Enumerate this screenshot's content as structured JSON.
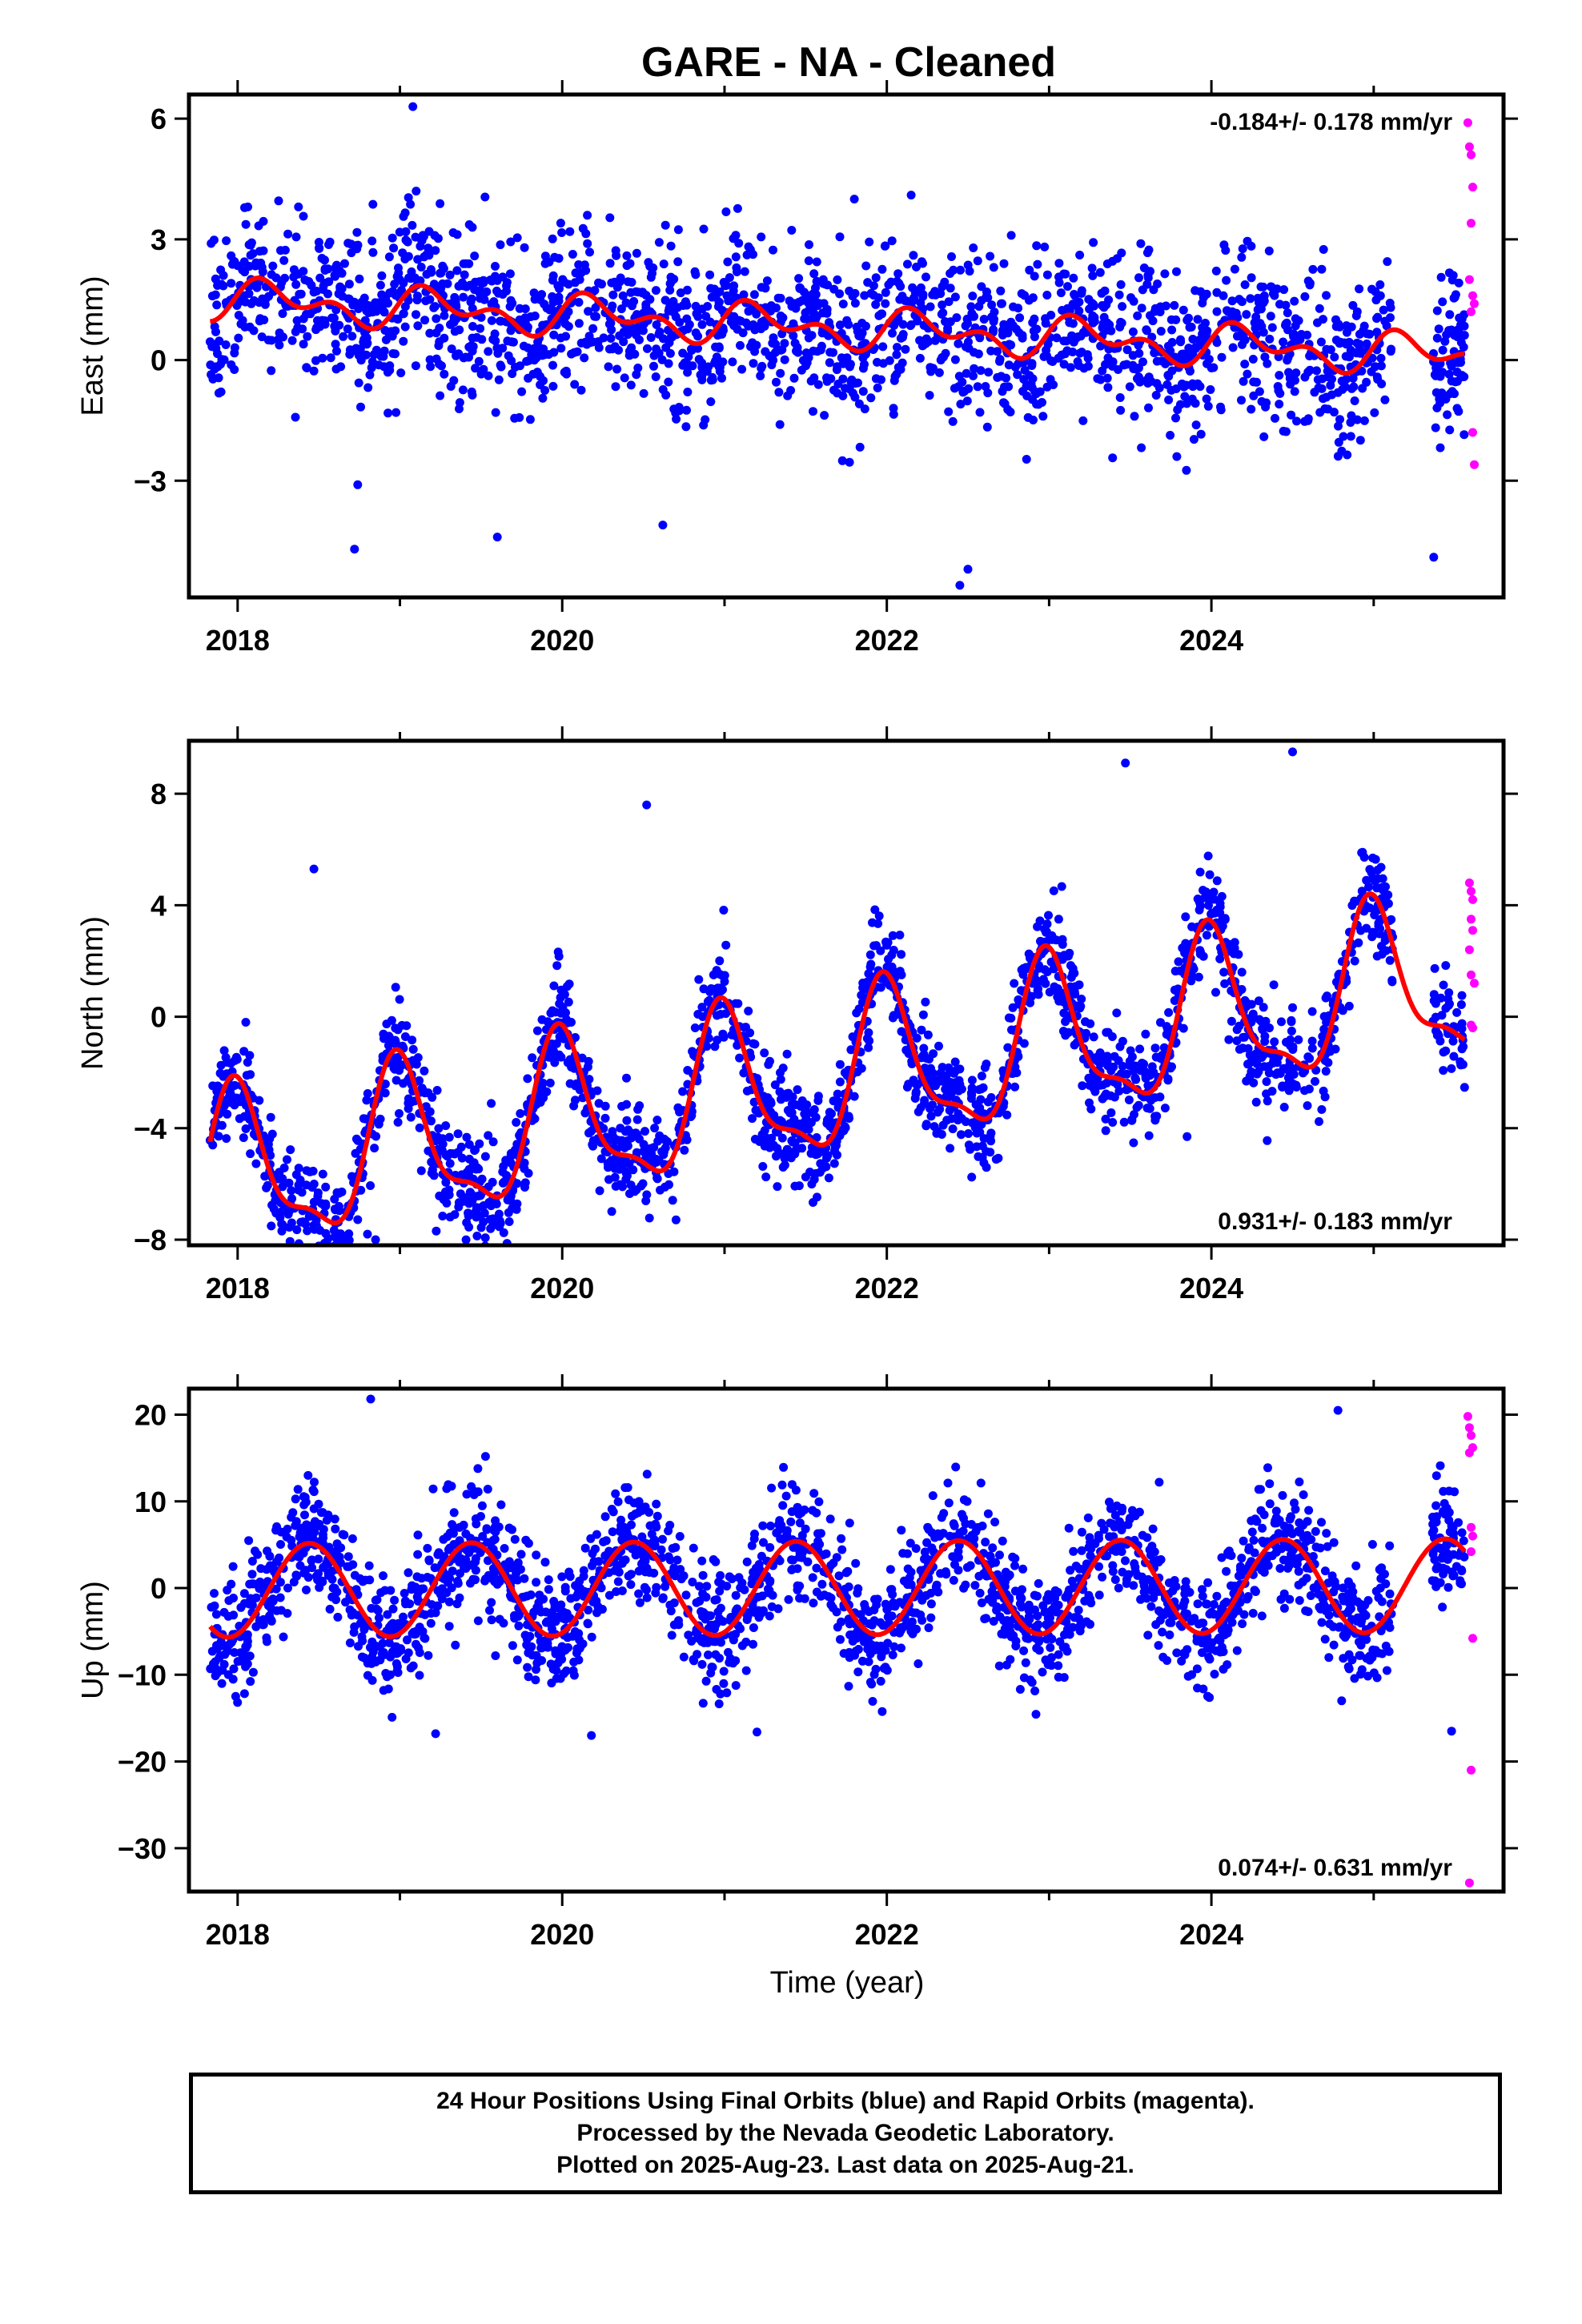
{
  "title": "GARE  - NA - Cleaned",
  "colors": {
    "final": "#0000ff",
    "rapid": "#ff00ff",
    "fit": "#ff0000",
    "frame": "#000000"
  },
  "xlabel": "Time (year)",
  "footer": {
    "line1": "24 Hour Positions Using Final Orbits (blue) and Rapid Orbits (magenta).",
    "line2": "Processed by the Nevada Geodetic Laboratory.",
    "line3": "Plotted on 2025-Aug-23. Last data on 2025-Aug-21."
  },
  "chart_data": [
    {
      "type": "scatter",
      "ylabel": "East (mm)",
      "rate_text": "-0.184+/- 0.178 mm/yr",
      "xlim": [
        2017.7,
        2025.8
      ],
      "ylim": [
        -5.9,
        6.6
      ],
      "xticks": [
        2018,
        2020,
        2022,
        2024
      ],
      "xtick_labels": [
        "2018",
        "2020",
        "2022",
        "2024"
      ],
      "yticks": [
        -3,
        0,
        3,
        6
      ],
      "ytick_labels": [
        "−3",
        "0",
        "3",
        "6"
      ],
      "x_start": 2017.83,
      "x_end": 2025.56,
      "n_points": 2200,
      "offset": 0.8,
      "trend": -0.184,
      "amp_annual": 0.35,
      "amp_semi": 0.3,
      "phase": 0.2,
      "noise": 1.0,
      "rapid_points": [
        [
          2025.58,
          5.9
        ],
        [
          2025.59,
          5.3
        ],
        [
          2025.6,
          5.1
        ],
        [
          2025.61,
          4.3
        ],
        [
          2025.6,
          3.4
        ],
        [
          2025.59,
          2.0
        ],
        [
          2025.61,
          1.6
        ],
        [
          2025.62,
          1.4
        ],
        [
          2025.6,
          1.2
        ],
        [
          2025.61,
          -1.8
        ],
        [
          2025.62,
          -2.6
        ]
      ],
      "outliers": [
        [
          2019.08,
          6.3
        ],
        [
          2019.1,
          4.2
        ],
        [
          2021.8,
          4.0
        ],
        [
          2022.15,
          4.1
        ],
        [
          2022.45,
          -5.6
        ],
        [
          2022.5,
          -5.2
        ],
        [
          2018.72,
          -4.7
        ],
        [
          2018.74,
          -3.1
        ],
        [
          2019.6,
          -4.4
        ],
        [
          2020.62,
          -4.1
        ],
        [
          2025.37,
          -4.9
        ]
      ]
    },
    {
      "type": "scatter",
      "ylabel": "North (mm)",
      "rate_text": "0.931+/- 0.183 mm/yr",
      "xlim": [
        2017.7,
        2025.8
      ],
      "ylim": [
        -8.2,
        9.9
      ],
      "xticks": [
        2018,
        2020,
        2022,
        2024
      ],
      "xtick_labels": [
        "2018",
        "2020",
        "2022",
        "2024"
      ],
      "yticks": [
        -8,
        -4,
        0,
        4,
        8
      ],
      "ytick_labels": [
        "−8",
        "−4",
        "0",
        "4",
        "8"
      ],
      "x_start": 2017.83,
      "x_end": 2025.56,
      "n_points": 2200,
      "offset": -2.2,
      "trend": 0.931,
      "amp_annual": 2.7,
      "amp_semi": 0.9,
      "phase": 1.6,
      "noise": 0.9,
      "rapid_points": [
        [
          2025.59,
          4.8
        ],
        [
          2025.6,
          4.5
        ],
        [
          2025.61,
          4.2
        ],
        [
          2025.6,
          3.5
        ],
        [
          2025.61,
          3.1
        ],
        [
          2025.59,
          2.4
        ],
        [
          2025.6,
          1.5
        ],
        [
          2025.62,
          1.2
        ],
        [
          2025.6,
          -0.3
        ],
        [
          2025.61,
          -0.4
        ]
      ],
      "outliers": [
        [
          2018.47,
          5.3
        ],
        [
          2020.52,
          7.6
        ],
        [
          2023.47,
          9.1
        ],
        [
          2024.5,
          9.5
        ],
        [
          2018.8,
          -7.8
        ],
        [
          2018.85,
          -8.0
        ],
        [
          2023.85,
          -4.3
        ]
      ]
    },
    {
      "type": "scatter",
      "ylabel": "Up (mm)",
      "rate_text": "0.074+/- 0.631 mm/yr",
      "xlim": [
        2017.7,
        2025.8
      ],
      "ylim": [
        -35,
        23
      ],
      "xticks": [
        2018,
        2020,
        2022,
        2024
      ],
      "xtick_labels": [
        "2018",
        "2020",
        "2022",
        "2024"
      ],
      "yticks": [
        -30,
        -20,
        -10,
        0,
        10,
        20
      ],
      "ytick_labels": [
        "−30",
        "−20",
        "−10",
        "0",
        "10",
        "20"
      ],
      "x_start": 2017.83,
      "x_end": 2025.56,
      "n_points": 2200,
      "offset": 0.0,
      "trend": 0.074,
      "amp_annual": 5.4,
      "amp_semi": 0.0,
      "phase": -1.2,
      "noise": 3.4,
      "rapid_points": [
        [
          2025.58,
          19.8
        ],
        [
          2025.59,
          18.5
        ],
        [
          2025.6,
          17.6
        ],
        [
          2025.61,
          16.2
        ],
        [
          2025.59,
          15.6
        ],
        [
          2025.6,
          7.0
        ],
        [
          2025.61,
          6.0
        ],
        [
          2025.6,
          4.2
        ],
        [
          2025.61,
          -5.8
        ],
        [
          2025.6,
          -21.0
        ],
        [
          2025.59,
          -34.0
        ]
      ],
      "outliers": [
        [
          2018.82,
          21.8
        ],
        [
          2024.78,
          20.5
        ],
        [
          2025.48,
          -16.5
        ],
        [
          2019.22,
          -16.8
        ],
        [
          2021.2,
          -16.6
        ],
        [
          2020.18,
          -17.0
        ]
      ]
    }
  ]
}
